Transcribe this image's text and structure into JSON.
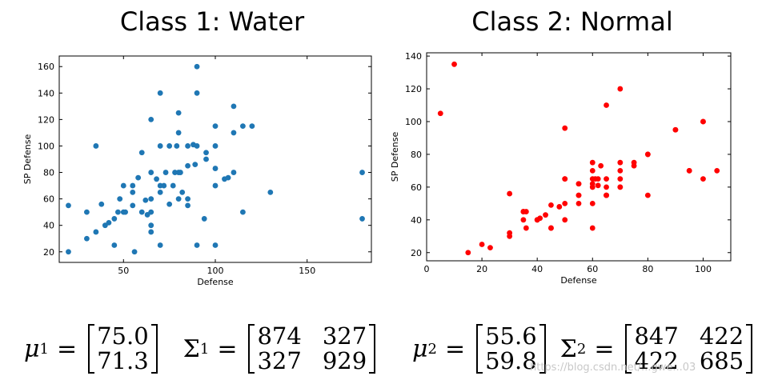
{
  "titles": {
    "left": "Class 1: Water",
    "right": "Class 2: Normal"
  },
  "chart_data": [
    {
      "type": "scatter",
      "title": "Class 1: Water",
      "xlabel": "Defense",
      "ylabel": "SP Defense",
      "xlim": [
        15,
        185
      ],
      "ylim": [
        12,
        168
      ],
      "xticks": [
        50,
        100,
        150
      ],
      "yticks": [
        20,
        40,
        60,
        80,
        100,
        120,
        140,
        160
      ],
      "color": "#1f77b4",
      "series": [
        {
          "x": [
            20,
            20,
            30,
            30,
            35,
            35,
            38,
            40,
            42,
            45,
            45,
            47,
            48,
            50,
            50,
            51,
            55,
            55,
            55,
            56,
            58,
            60,
            60,
            62,
            63,
            65,
            65,
            65,
            65,
            65,
            65,
            68,
            70,
            70,
            70,
            70,
            70,
            72,
            73,
            75,
            75,
            77,
            78,
            79,
            80,
            80,
            80,
            80,
            81,
            82,
            85,
            85,
            85,
            85,
            88,
            89,
            90,
            90,
            90,
            90,
            94,
            95,
            95,
            100,
            100,
            100,
            100,
            100,
            105,
            107,
            110,
            110,
            110,
            115,
            115,
            120,
            130,
            180,
            180
          ],
          "y": [
            55,
            20,
            50,
            30,
            35,
            100,
            56,
            40,
            42,
            45,
            25,
            50,
            60,
            50,
            70,
            50,
            70,
            65,
            55,
            20,
            76,
            50,
            95,
            59,
            48,
            120,
            80,
            40,
            35,
            50,
            60,
            75,
            70,
            140,
            100,
            25,
            65,
            70,
            80,
            100,
            56,
            70,
            80,
            100,
            125,
            110,
            80,
            60,
            80,
            65,
            85,
            55,
            60,
            100,
            101,
            86,
            160,
            140,
            100,
            25,
            45,
            90,
            95,
            115,
            100,
            83,
            70,
            25,
            75,
            76,
            130,
            110,
            80,
            115,
            50,
            115,
            65,
            80,
            45
          ]
        }
      ],
      "formula": {
        "symbol": "μ",
        "superscript": "1",
        "mean": [
          "75.0",
          "71.3"
        ],
        "cov_symbol": "Σ",
        "cov": [
          [
            "874",
            "327"
          ],
          [
            "327",
            "929"
          ]
        ]
      }
    },
    {
      "type": "scatter",
      "title": "Class 2: Normal",
      "xlabel": "Defense",
      "ylabel": "SP Defense",
      "xlim": [
        0,
        110
      ],
      "ylim": [
        15,
        142
      ],
      "xticks": [
        0,
        20,
        40,
        60,
        80,
        100
      ],
      "yticks": [
        20,
        40,
        60,
        80,
        100,
        120,
        140
      ],
      "color": "#ff0000",
      "series": [
        {
          "x": [
            5,
            10,
            15,
            20,
            23,
            30,
            30,
            30,
            35,
            35,
            35,
            36,
            36,
            40,
            40,
            41,
            43,
            45,
            45,
            45,
            48,
            50,
            50,
            50,
            50,
            50,
            55,
            55,
            55,
            55,
            55,
            60,
            60,
            60,
            60,
            60,
            60,
            60,
            60,
            61,
            62,
            62,
            63,
            65,
            65,
            65,
            65,
            65,
            65,
            70,
            70,
            70,
            70,
            70,
            70,
            75,
            75,
            80,
            80,
            80,
            90,
            90,
            95,
            95,
            100,
            100,
            100,
            105
          ],
          "y": [
            105,
            135,
            20,
            25,
            23,
            56,
            32,
            30,
            45,
            45,
            40,
            35,
            45,
            40,
            40,
            41,
            43,
            35,
            49,
            35,
            48,
            96,
            65,
            50,
            40,
            65,
            62,
            55,
            50,
            55,
            62,
            75,
            70,
            65,
            62,
            60,
            50,
            35,
            60,
            65,
            61,
            65,
            73,
            110,
            65,
            60,
            55,
            55,
            55,
            120,
            75,
            70,
            65,
            60,
            60,
            75,
            73,
            80,
            80,
            55,
            95,
            95,
            70,
            70,
            100,
            65,
            100,
            70
          ]
        }
      ],
      "formula": {
        "symbol": "μ",
        "superscript": "2",
        "mean": [
          "55.6",
          "59.8"
        ],
        "cov_symbol": "Σ",
        "cov": [
          [
            "847",
            "422"
          ],
          [
            "422",
            "685"
          ]
        ]
      }
    }
  ],
  "watermark": "https://blog.csdn.net/...gwe...03"
}
